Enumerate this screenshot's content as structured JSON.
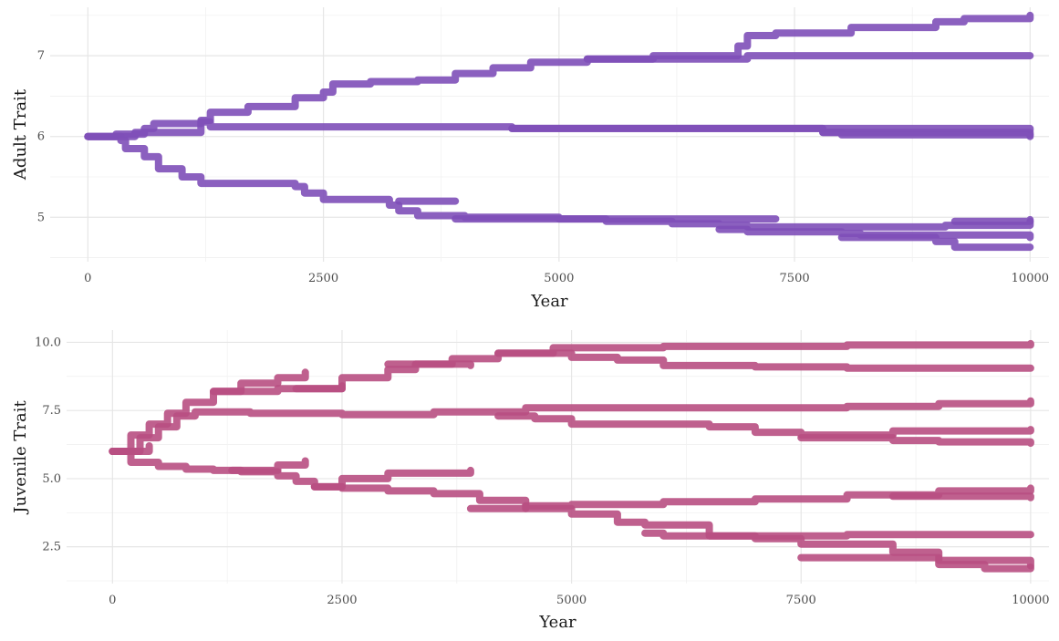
{
  "chart_data": [
    {
      "type": "scatter",
      "xlabel": "Year",
      "ylabel": "Adult Trait",
      "xlim": [
        -400,
        10200
      ],
      "ylim": [
        4.45,
        7.6
      ],
      "xticks": [
        0,
        2500,
        5000,
        7500,
        10000
      ],
      "xtick_labels": [
        "0",
        "2500",
        "5000",
        "7500",
        "10000"
      ],
      "yticks": [
        5,
        6,
        7
      ],
      "ytick_labels": [
        "5",
        "6",
        "7"
      ],
      "grid": true,
      "color": "#7e4fb8",
      "series": [
        {
          "x": [
            0,
            300,
            600,
            700,
            1200,
            1300,
            1700,
            2200,
            2500,
            2600,
            3000,
            3500,
            3900,
            4300,
            4700,
            5300,
            6000,
            6900,
            7000,
            7300,
            8100,
            9000,
            9300,
            10000
          ],
          "y": [
            6.0,
            6.03,
            6.1,
            6.16,
            6.2,
            6.3,
            6.37,
            6.48,
            6.55,
            6.65,
            6.68,
            6.7,
            6.78,
            6.85,
            6.92,
            6.96,
            7.0,
            7.12,
            7.25,
            7.28,
            7.35,
            7.42,
            7.46,
            7.5
          ]
        },
        {
          "x": [
            5300,
            7000,
            10000
          ],
          "y": [
            6.96,
            7.0,
            7.0
          ]
        },
        {
          "x": [
            0,
            500,
            1200,
            1300,
            2500,
            4500,
            7500,
            7800,
            8000,
            10000
          ],
          "y": [
            6.0,
            6.05,
            6.18,
            6.12,
            6.12,
            6.1,
            6.1,
            6.05,
            6.02,
            6.02
          ]
        },
        {
          "x": [
            4500,
            10000
          ],
          "y": [
            6.1,
            6.08
          ]
        },
        {
          "x": [
            7800,
            10000
          ],
          "y": [
            6.05,
            6.0
          ]
        },
        {
          "x": [
            0,
            350,
            400,
            600,
            750,
            1000,
            1200,
            2200,
            2300,
            2500,
            3200,
            3300,
            3500,
            4000,
            5000,
            5500,
            6200,
            6700,
            7000,
            7500,
            8000,
            8500,
            9100,
            10000
          ],
          "y": [
            6.0,
            5.95,
            5.85,
            5.75,
            5.6,
            5.5,
            5.42,
            5.38,
            5.3,
            5.22,
            5.15,
            5.08,
            5.02,
            5.0,
            4.98,
            4.95,
            4.92,
            4.9,
            4.88,
            4.88,
            4.88,
            4.88,
            4.9,
            4.95
          ]
        },
        {
          "x": [
            3300,
            3900
          ],
          "y": [
            5.2,
            5.2
          ]
        },
        {
          "x": [
            6700,
            7000,
            8000,
            8200,
            10000
          ],
          "y": [
            4.85,
            4.82,
            4.8,
            4.78,
            4.75
          ]
        },
        {
          "x": [
            8000,
            9000,
            9200,
            10000
          ],
          "y": [
            4.75,
            4.7,
            4.63,
            4.63
          ]
        },
        {
          "x": [
            9200,
            10000
          ],
          "y": [
            4.95,
            4.97
          ]
        },
        {
          "x": [
            3900,
            4300,
            4800,
            5000,
            7300
          ],
          "y": [
            4.98,
            4.98,
            4.98,
            4.98,
            4.98
          ]
        }
      ]
    },
    {
      "type": "scatter",
      "xlabel": "Year",
      "ylabel": "Juvenile Trait",
      "xlim": [
        -500,
        10200
      ],
      "ylim": [
        1.15,
        10.45
      ],
      "xticks": [
        0,
        2500,
        5000,
        7500,
        10000
      ],
      "xtick_labels": [
        "0",
        "2500",
        "5000",
        "7500",
        "10000"
      ],
      "yticks": [
        2.5,
        5.0,
        7.5,
        10.0
      ],
      "ytick_labels": [
        "2.5",
        "5.0",
        "7.5",
        "10.0"
      ],
      "grid": true,
      "color": "#b84f82",
      "series": [
        {
          "x": [
            0,
            200,
            400,
            600,
            800,
            1100,
            1400,
            1800,
            2100
          ],
          "y": [
            6.0,
            6.6,
            7.0,
            7.4,
            7.8,
            8.2,
            8.5,
            8.7,
            8.9
          ]
        },
        {
          "x": [
            1100,
            1800,
            2500,
            3000,
            3300,
            3700,
            4200,
            4800,
            6000,
            8000,
            10000
          ],
          "y": [
            8.2,
            8.3,
            8.7,
            9.0,
            9.2,
            9.4,
            9.6,
            9.8,
            9.85,
            9.9,
            9.95
          ]
        },
        {
          "x": [
            2000,
            2500
          ],
          "y": [
            8.3,
            8.4
          ]
        },
        {
          "x": [
            3000,
            3900
          ],
          "y": [
            9.2,
            9.15
          ]
        },
        {
          "x": [
            4200,
            5000,
            5500,
            6000,
            7000,
            8000,
            10000
          ],
          "y": [
            9.6,
            9.45,
            9.35,
            9.15,
            9.1,
            9.05,
            9.05
          ]
        },
        {
          "x": [
            0,
            300,
            500,
            700,
            900,
            1500,
            2500,
            3500,
            4500,
            5000,
            6500,
            8000,
            9000,
            10000
          ],
          "y": [
            6.0,
            6.5,
            6.9,
            7.3,
            7.45,
            7.4,
            7.35,
            7.45,
            7.6,
            7.6,
            7.6,
            7.65,
            7.75,
            7.85
          ]
        },
        {
          "x": [
            4200,
            4600,
            5000,
            6500,
            7000,
            7500,
            8000,
            8500,
            10000
          ],
          "y": [
            7.3,
            7.2,
            7.0,
            6.9,
            6.7,
            6.6,
            6.6,
            6.75,
            6.8
          ]
        },
        {
          "x": [
            7500,
            8500,
            9000,
            10000
          ],
          "y": [
            6.5,
            6.4,
            6.35,
            6.3
          ]
        },
        {
          "x": [
            0,
            400
          ],
          "y": [
            6.0,
            6.2
          ]
        },
        {
          "x": [
            0,
            200,
            500,
            800,
            1100,
            1400,
            1800,
            2000,
            2200,
            2500,
            3000,
            3500,
            4000,
            4500,
            5000,
            5500,
            5800,
            6500,
            7000,
            7500,
            8500,
            9000,
            10000
          ],
          "y": [
            6.0,
            5.6,
            5.45,
            5.35,
            5.3,
            5.25,
            5.1,
            4.9,
            4.7,
            4.65,
            4.55,
            4.45,
            4.2,
            3.9,
            3.7,
            3.4,
            3.3,
            2.9,
            2.8,
            2.6,
            2.3,
            2.0,
            1.8
          ]
        },
        {
          "x": [
            1300,
            1800,
            2100
          ],
          "y": [
            5.3,
            5.5,
            5.65
          ]
        },
        {
          "x": [
            2200,
            2500,
            3000,
            3900
          ],
          "y": [
            4.7,
            5.0,
            5.2,
            5.3
          ]
        },
        {
          "x": [
            3900,
            4500,
            5000,
            6000,
            7000,
            8000,
            9000,
            10000
          ],
          "y": [
            3.9,
            4.0,
            4.05,
            4.15,
            4.25,
            4.4,
            4.55,
            4.65
          ]
        },
        {
          "x": [
            8500,
            10000
          ],
          "y": [
            4.35,
            4.3
          ]
        },
        {
          "x": [
            5800,
            6000,
            7000,
            8000,
            10000
          ],
          "y": [
            3.0,
            2.9,
            2.9,
            2.95,
            2.95
          ]
        },
        {
          "x": [
            7500,
            8500,
            9000,
            9500,
            10000
          ],
          "y": [
            2.1,
            2.1,
            1.85,
            1.7,
            1.75
          ]
        }
      ]
    }
  ]
}
